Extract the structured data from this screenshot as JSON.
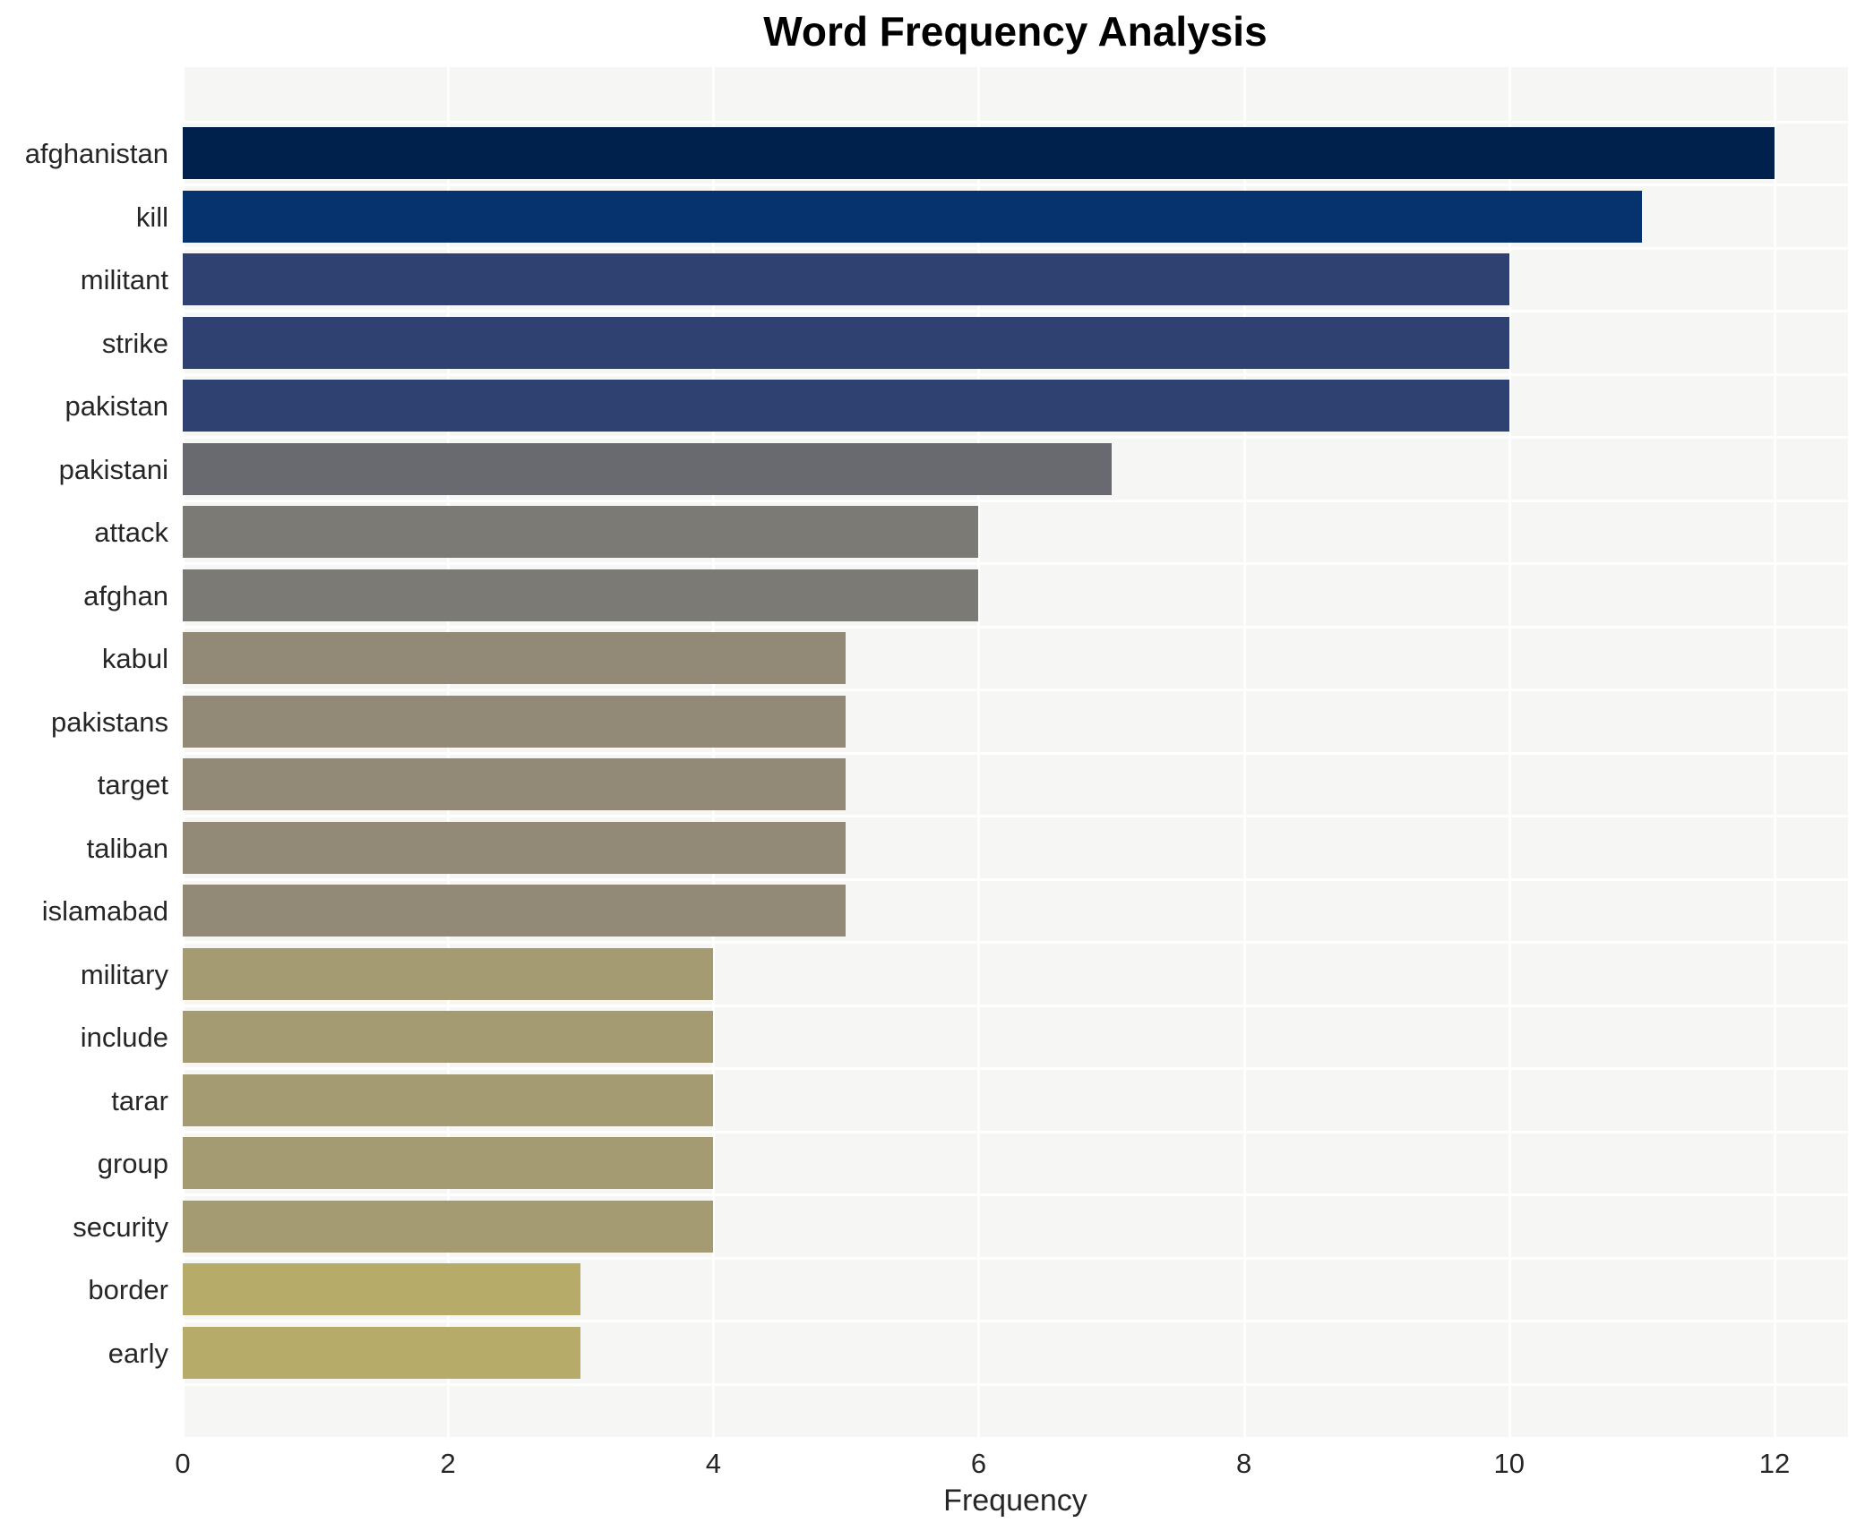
{
  "figure": {
    "title": "Word Frequency Analysis"
  },
  "chart_data": {
    "type": "bar",
    "orientation": "horizontal",
    "title": "Word Frequency Analysis",
    "xlabel": "Frequency",
    "ylabel": "",
    "xlim": [
      0,
      12.55
    ],
    "x_ticks": [
      0,
      2,
      4,
      6,
      8,
      10,
      12
    ],
    "grid": true,
    "legend_position": "none",
    "plot_background": "#f6f6f4",
    "grid_color": "#ffffff",
    "text_color": "#262626",
    "categories": [
      "afghanistan",
      "kill",
      "militant",
      "strike",
      "pakistan",
      "pakistani",
      "attack",
      "afghan",
      "kabul",
      "pakistans",
      "target",
      "taliban",
      "islamabad",
      "military",
      "include",
      "tarar",
      "group",
      "security",
      "border",
      "early"
    ],
    "values": [
      12,
      11,
      10,
      10,
      10,
      7,
      6,
      6,
      5,
      5,
      5,
      5,
      5,
      4,
      4,
      4,
      4,
      4,
      3,
      3
    ],
    "bar_colors": [
      "#01214d",
      "#06336e",
      "#2e4170",
      "#2e4170",
      "#2e4170",
      "#696970",
      "#7b7a74",
      "#7b7a74",
      "#928a77",
      "#928a77",
      "#928a77",
      "#928a77",
      "#928a77",
      "#a49b73",
      "#a49b73",
      "#a49b73",
      "#a49b73",
      "#a49b73",
      "#b6ab69",
      "#b6ab69"
    ]
  }
}
